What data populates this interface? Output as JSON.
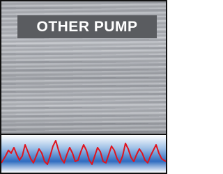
{
  "label": {
    "text": "OTHER PUMP"
  }
}
